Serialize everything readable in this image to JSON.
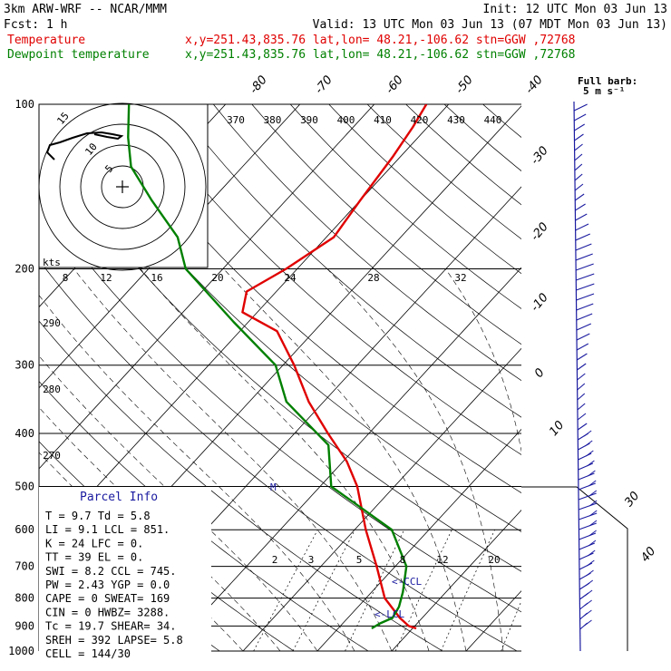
{
  "header": {
    "model": "3km ARW-WRF -- NCAR/MMM",
    "init": "Init: 12 UTC Mon 03 Jun 13",
    "fcst": "Fcst:     1 h",
    "valid": "Valid: 13 UTC Mon 03 Jun 13 (07 MDT Mon 03 Jun 13)",
    "temp_label": "Temperature",
    "dew_label": "Dewpoint temperature",
    "location": "x,y=251.43,835.76   lat,lon= 48.21,-106.62   stn=GGW ,72768",
    "barb_note": "Full barb:",
    "barb_unit": "5 m s⁻¹"
  },
  "chart_data": {
    "type": "line",
    "y_scale": "log-pressure",
    "ylim": [
      1000,
      100
    ],
    "pressure_ticks": [
      100,
      200,
      300,
      400,
      500,
      600,
      700,
      800,
      900,
      1000
    ],
    "top_isotherm_labels": [
      "-80",
      "-70",
      "-60",
      "-50",
      "-40"
    ],
    "side_isotherm_labels": [
      "-30",
      "-20",
      "-10",
      "0",
      "10",
      "30",
      "40"
    ],
    "theta_e_labels": [
      "370",
      "380",
      "390",
      "400",
      "410",
      "420",
      "430",
      "440"
    ],
    "theta_side_labels": [
      "290",
      "280",
      "270"
    ],
    "mixing_ratio_labels": [
      "2",
      "3",
      "5",
      "8",
      "12",
      "20"
    ],
    "hodograph_speed_labels": [
      "8",
      "12",
      "16",
      "20",
      "24",
      "28",
      "32"
    ],
    "hodograph_ring_labels": [
      "5",
      "10",
      "15"
    ],
    "hodograph_unit": "kts",
    "series": [
      {
        "name": "Temperature",
        "color": "#e00000",
        "points": [
          [
            909,
            10.5
          ],
          [
            900,
            9.2
          ],
          [
            870,
            7.0
          ],
          [
            800,
            2.5
          ],
          [
            700,
            -2.5
          ],
          [
            600,
            -8.5
          ],
          [
            500,
            -15.0
          ],
          [
            450,
            -19.5
          ],
          [
            400,
            -25.5
          ],
          [
            350,
            -32.0
          ],
          [
            300,
            -38.5
          ],
          [
            260,
            -45.0
          ],
          [
            240,
            -52.0
          ],
          [
            220,
            -54.0
          ],
          [
            200,
            -51.5
          ],
          [
            175,
            -49.0
          ],
          [
            150,
            -50.0
          ],
          [
            125,
            -51.0
          ],
          [
            110,
            -52.0
          ],
          [
            100,
            -53.0
          ]
        ]
      },
      {
        "name": "Dewpoint temperature",
        "color": "#008000",
        "points": [
          [
            909,
            4.5
          ],
          [
            890,
            5.0
          ],
          [
            870,
            6.0
          ],
          [
            830,
            5.5
          ],
          [
            780,
            4.2
          ],
          [
            700,
            1.5
          ],
          [
            600,
            -5.0
          ],
          [
            500,
            -18.5
          ],
          [
            420,
            -24.0
          ],
          [
            350,
            -35.0
          ],
          [
            300,
            -41.0
          ],
          [
            250,
            -52.0
          ],
          [
            200,
            -65.0
          ],
          [
            175,
            -70.0
          ],
          [
            150,
            -78.0
          ],
          [
            130,
            -85.0
          ],
          [
            115,
            -89.0
          ],
          [
            100,
            -93.0
          ]
        ]
      }
    ],
    "annotations": [
      "M",
      "<-CCL",
      "<-LCL"
    ]
  },
  "parcel_info": {
    "title": "Parcel Info",
    "lines": [
      "T   =   9.7  Td =   5.8",
      "LI  =   9.1  LCL =  851.",
      "K   =    24  LFC =    0.",
      "TT  =    39  EL  =    0.",
      "SWI =   8.2  CCL =  745.",
      "PW  =  2.43  YGP =   0.0",
      "CAPE =    0  SWEAT=  169",
      "CIN  =    0  HWBZ= 3288.",
      "Tc  =  19.7  SHEAR=  34.",
      "SREH =  392  LAPSE=  5.8",
      "CELL = 144/30"
    ]
  }
}
